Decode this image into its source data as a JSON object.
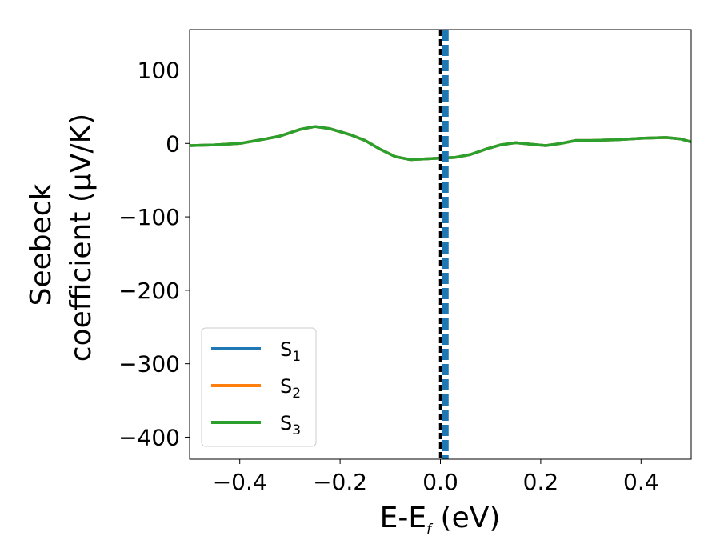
{
  "chart_data": {
    "type": "line",
    "xlabel": {
      "main": "E-E",
      "sub": "f",
      "unit": " (eV)"
    },
    "ylabel": {
      "line1": "Seebeck",
      "line2": "coefficient  (μV/K)"
    },
    "xlim": [
      -0.5,
      0.5
    ],
    "ylim": [
      -430,
      155
    ],
    "xticks": [
      {
        "value": -0.4,
        "label": "−0.4"
      },
      {
        "value": -0.2,
        "label": "−0.2"
      },
      {
        "value": 0.0,
        "label": "0.0"
      },
      {
        "value": 0.2,
        "label": "0.2"
      },
      {
        "value": 0.4,
        "label": "0.4"
      }
    ],
    "yticks": [
      {
        "value": 100,
        "label": "100"
      },
      {
        "value": 0,
        "label": "0"
      },
      {
        "value": -100,
        "label": "−100"
      },
      {
        "value": -200,
        "label": "−200"
      },
      {
        "value": -300,
        "label": "−300"
      },
      {
        "value": -400,
        "label": "−400"
      }
    ],
    "grid": false,
    "legend_position": "lower-left",
    "series": [
      {
        "name": "S",
        "sub": "1",
        "color": "#1f77b4",
        "x": [
          -0.5,
          -0.45,
          -0.4,
          -0.35,
          -0.32,
          -0.28,
          -0.25,
          -0.22,
          -0.18,
          -0.15,
          -0.12,
          -0.09,
          -0.06,
          -0.03,
          0.0,
          0.03,
          0.06,
          0.09,
          0.12,
          0.15,
          0.18,
          0.21,
          0.24,
          0.27,
          0.3,
          0.35,
          0.4,
          0.45,
          0.48,
          0.5
        ],
        "y": [
          -3,
          -2,
          0,
          6,
          10,
          19,
          23,
          20,
          12,
          4,
          -8,
          -18,
          -22,
          -21,
          -20,
          -19,
          -15,
          -8,
          -2,
          1,
          -1,
          -3,
          0,
          4,
          4,
          5,
          7,
          8,
          6,
          2
        ]
      },
      {
        "name": "S",
        "sub": "2",
        "color": "#ff7f0e",
        "x": [
          -0.5,
          -0.45,
          -0.4,
          -0.35,
          -0.32,
          -0.28,
          -0.25,
          -0.22,
          -0.18,
          -0.15,
          -0.12,
          -0.09,
          -0.06,
          -0.03,
          0.0,
          0.03,
          0.06,
          0.09,
          0.12,
          0.15,
          0.18,
          0.21,
          0.24,
          0.27,
          0.3,
          0.35,
          0.4,
          0.45,
          0.48,
          0.5
        ],
        "y": [
          -3,
          -2,
          0,
          6,
          10,
          19,
          23,
          20,
          12,
          4,
          -8,
          -18,
          -22,
          -21,
          -20,
          -19,
          -15,
          -8,
          -2,
          1,
          -1,
          -3,
          0,
          4,
          4,
          5,
          7,
          8,
          6,
          2
        ]
      },
      {
        "name": "S",
        "sub": "3",
        "color": "#2ca02c",
        "x": [
          -0.5,
          -0.45,
          -0.4,
          -0.35,
          -0.32,
          -0.28,
          -0.25,
          -0.22,
          -0.18,
          -0.15,
          -0.12,
          -0.09,
          -0.06,
          -0.03,
          0.0,
          0.03,
          0.06,
          0.09,
          0.12,
          0.15,
          0.18,
          0.21,
          0.24,
          0.27,
          0.3,
          0.35,
          0.4,
          0.45,
          0.48,
          0.5
        ],
        "y": [
          -3,
          -2,
          0,
          6,
          10,
          19,
          23,
          20,
          12,
          4,
          -8,
          -18,
          -22,
          -21,
          -20,
          -19,
          -15,
          -8,
          -2,
          1,
          -1,
          -3,
          0,
          4,
          4,
          5,
          7,
          8,
          6,
          2
        ]
      }
    ],
    "vlines": [
      {
        "x": 0.0,
        "color": "#000000",
        "style": "dashed"
      },
      {
        "x": 0.01,
        "color": "#1f77b4",
        "style": "dashed"
      }
    ]
  }
}
